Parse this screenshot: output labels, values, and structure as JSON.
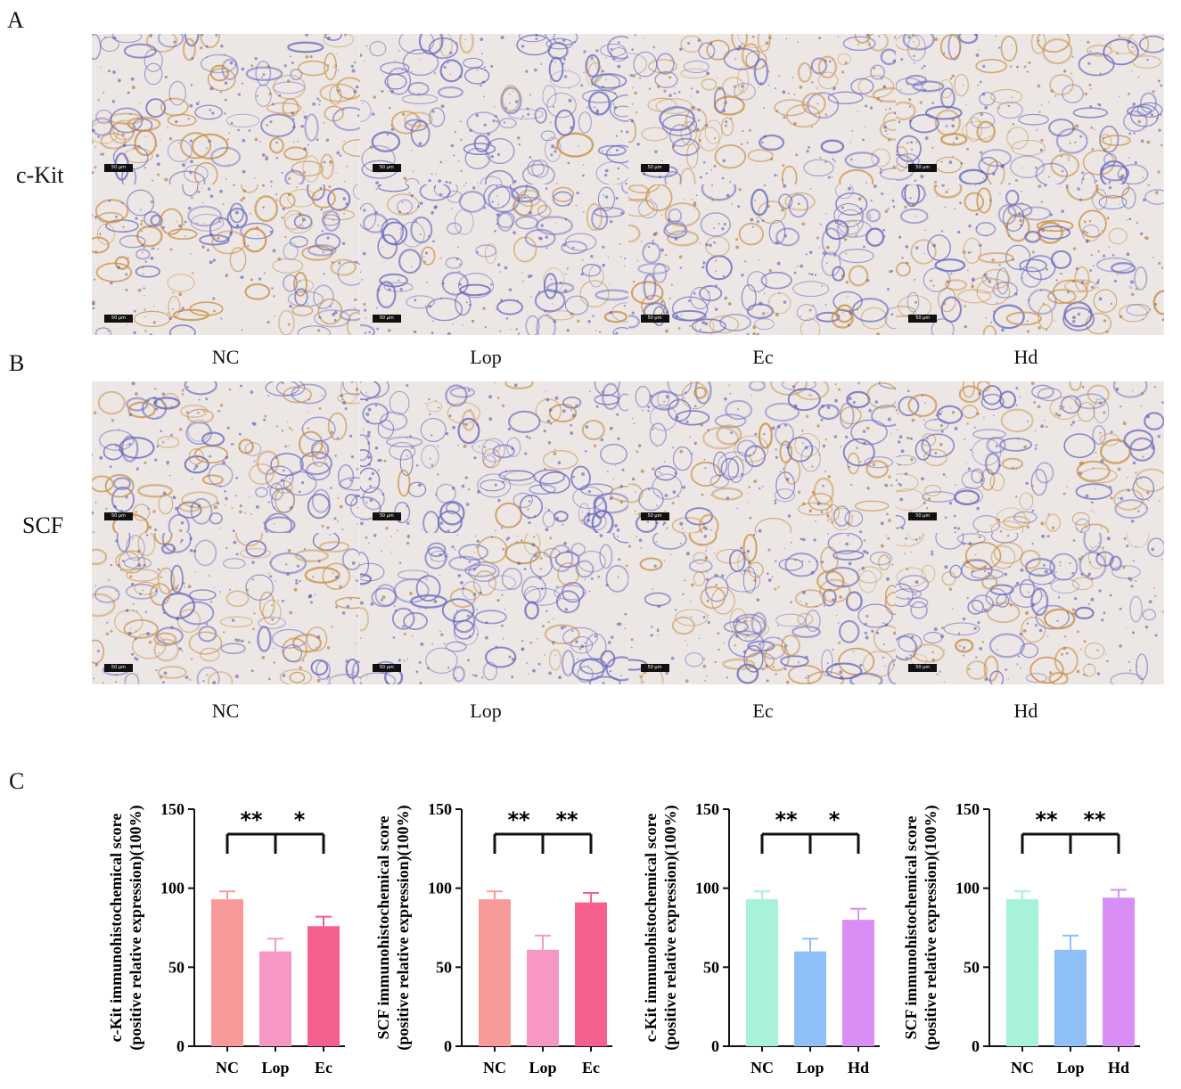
{
  "panels": {
    "A": {
      "letter": "A",
      "row_label": "c-Kit",
      "group_labels": [
        "NC",
        "Lop",
        "Ec",
        "Hd"
      ],
      "scale_bar": "50 μm"
    },
    "B": {
      "letter": "B",
      "row_label": "SCF",
      "group_labels": [
        "NC",
        "Lop",
        "Ec",
        "Hd"
      ],
      "scale_bar": "50 μm"
    },
    "C": {
      "letter": "C"
    }
  },
  "colors": {
    "NC_Ec_set": [
      "#f99a9a",
      "#f797c6",
      "#f6608e"
    ],
    "NC_Hd_set": [
      "#a8f2d8",
      "#8ebff7",
      "#d98ef6"
    ],
    "brown": "#c8924a",
    "hematoxylin": "#6c6cc0"
  },
  "chart_data": [
    {
      "type": "bar",
      "categories": [
        "NC",
        "Lop",
        "Ec"
      ],
      "values": [
        93,
        60,
        76
      ],
      "errors": [
        5,
        8,
        6
      ],
      "ylabel": [
        "c-Kit immunohistochemical score",
        "(positive relative expression)(100%)"
      ],
      "ylim": [
        0,
        150
      ],
      "yticks": [
        "0",
        "50",
        "100",
        "150"
      ],
      "significance": [
        "**",
        "*"
      ]
    },
    {
      "type": "bar",
      "categories": [
        "NC",
        "Lop",
        "Ec"
      ],
      "values": [
        93,
        61,
        91
      ],
      "errors": [
        5,
        9,
        6
      ],
      "ylabel": [
        "SCF immunohistochemical score",
        "(positive relative expression)(100%)"
      ],
      "ylim": [
        0,
        150
      ],
      "yticks": [
        "0",
        "50",
        "100",
        "150"
      ],
      "significance": [
        "**",
        "**"
      ]
    },
    {
      "type": "bar",
      "categories": [
        "NC",
        "Lop",
        "Hd"
      ],
      "values": [
        93,
        60,
        80
      ],
      "errors": [
        5,
        8,
        7
      ],
      "ylabel": [
        "c-Kit immunohistochemical score",
        "(positive relative expression)(100%)"
      ],
      "ylim": [
        0,
        150
      ],
      "yticks": [
        "0",
        "50",
        "100",
        "150"
      ],
      "significance": [
        "**",
        "*"
      ]
    },
    {
      "type": "bar",
      "categories": [
        "NC",
        "Lop",
        "Hd"
      ],
      "values": [
        93,
        61,
        94
      ],
      "errors": [
        5,
        9,
        5
      ],
      "ylabel": [
        "SCF immunohistochemical score",
        "(positive relative expression)(100%)"
      ],
      "ylim": [
        0,
        150
      ],
      "yticks": [
        "0",
        "50",
        "100",
        "150"
      ],
      "significance": [
        "**",
        "**"
      ]
    }
  ]
}
